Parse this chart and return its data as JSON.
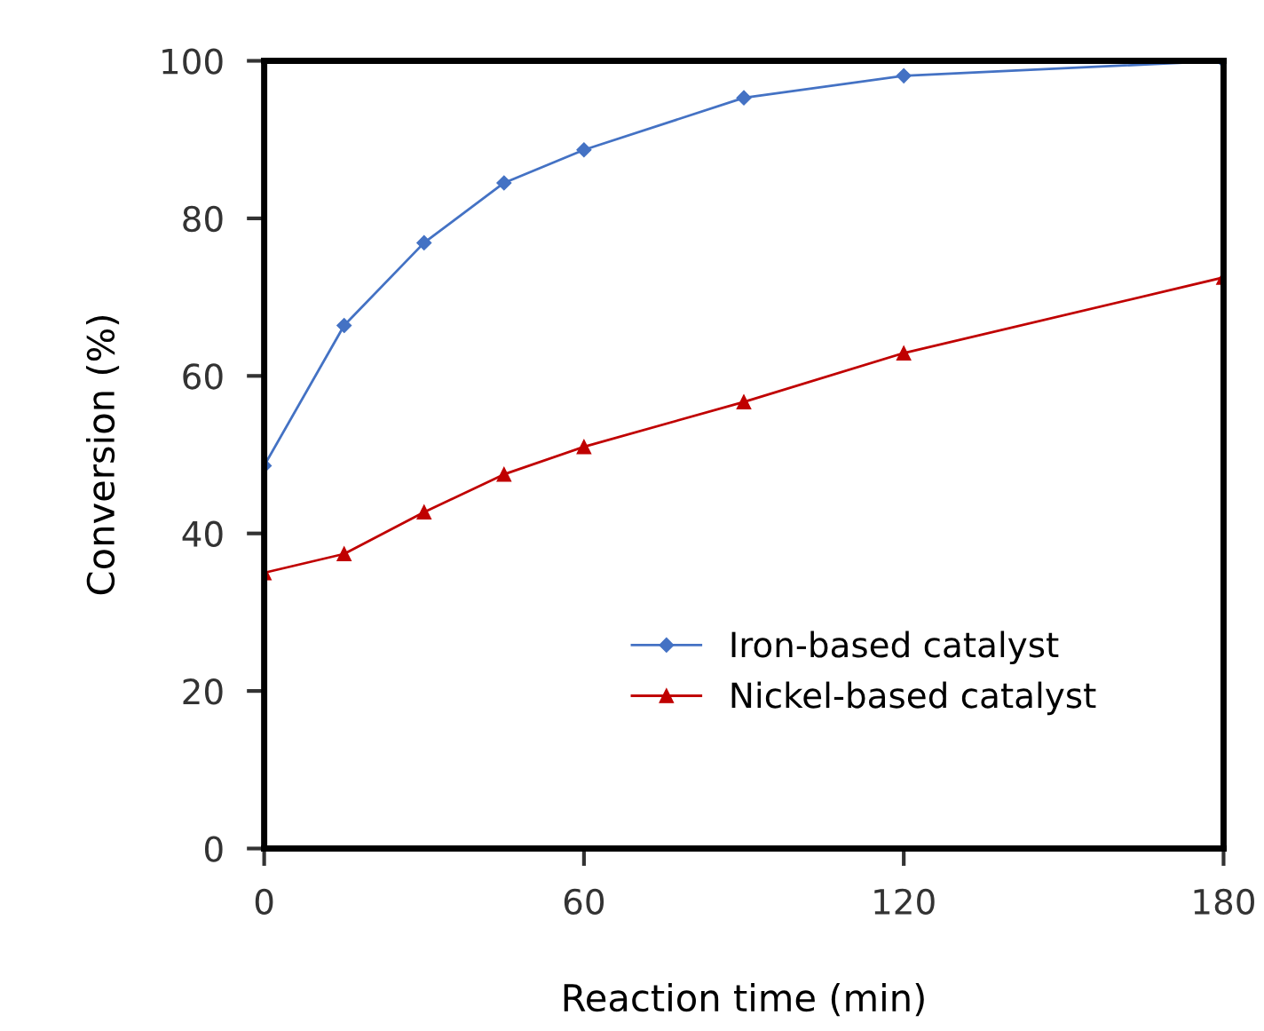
{
  "chart_data": {
    "type": "line",
    "xlabel": "Reaction time (min)",
    "ylabel": "Conversion (%)",
    "xlim": [
      0,
      180
    ],
    "xticks": [
      0,
      60,
      120,
      180
    ],
    "ylim": [
      0,
      100
    ],
    "yticks": [
      0,
      20,
      40,
      60,
      80,
      100
    ],
    "x": [
      0,
      15,
      30,
      45,
      60,
      90,
      120,
      180
    ],
    "series": [
      {
        "name": "Iron-based catalyst",
        "color": "#4472c4",
        "marker": "diamond",
        "values": [
          48.6,
          66.4,
          76.9,
          84.5,
          88.7,
          95.3,
          98.1,
          100
        ]
      },
      {
        "name": "Nickel-based catalyst",
        "color": "#c00000",
        "marker": "triangle",
        "values": [
          35.0,
          37.4,
          42.7,
          47.5,
          51.0,
          56.7,
          62.9,
          72.5
        ]
      }
    ],
    "legend": "bottom right",
    "grid": false
  }
}
